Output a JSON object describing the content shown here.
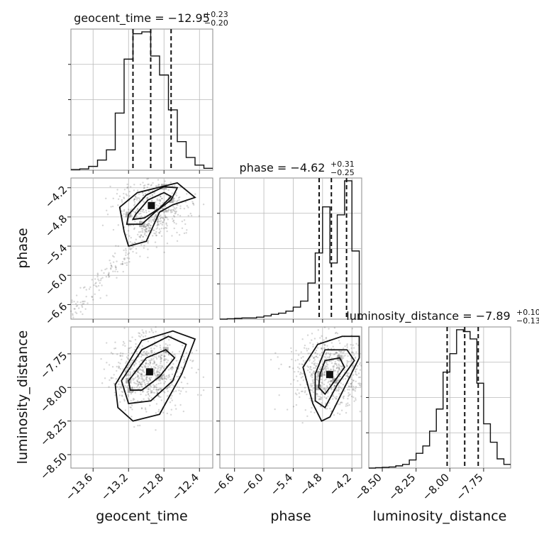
{
  "chart_data": [
    {
      "type": "histogram",
      "panel": "geocent_time_1d",
      "title": {
        "main": "geocent_time = −12.95",
        "sup": "+0.23",
        "sub": "−0.20"
      },
      "xlim": [
        -13.85,
        -12.25
      ],
      "bin_edges": [
        -13.85,
        -13.75,
        -13.65,
        -13.55,
        -13.45,
        -13.35,
        -13.25,
        -13.15,
        -13.05,
        -12.95,
        -12.85,
        -12.75,
        -12.65,
        -12.55,
        -12.45,
        -12.35,
        -12.25
      ],
      "counts": [
        1,
        2,
        6,
        16,
        32,
        90,
        175,
        215,
        218,
        180,
        150,
        95,
        45,
        20,
        8,
        3
      ],
      "quantiles": [
        -13.15,
        -12.95,
        -12.72
      ]
    },
    {
      "type": "scatter",
      "panel": "geocent_time_vs_phase",
      "xlim": [
        -13.85,
        -12.25
      ],
      "ylim": [
        -6.9,
        -4.0
      ],
      "contours": [
        [
          [
            -13.2,
            -4.75
          ],
          [
            -13.0,
            -4.35
          ],
          [
            -12.8,
            -4.18
          ],
          [
            -12.65,
            -4.2
          ],
          [
            -12.72,
            -4.45
          ],
          [
            -12.9,
            -4.7
          ],
          [
            -13.05,
            -4.95
          ],
          [
            -13.22,
            -4.95
          ]
        ],
        [
          [
            -13.12,
            -4.75
          ],
          [
            -12.98,
            -4.45
          ],
          [
            -12.8,
            -4.3
          ],
          [
            -12.72,
            -4.38
          ],
          [
            -12.85,
            -4.62
          ],
          [
            -13.02,
            -4.82
          ],
          [
            -13.15,
            -4.85
          ]
        ],
        [
          [
            -13.3,
            -4.6
          ],
          [
            -13.1,
            -4.3
          ],
          [
            -12.65,
            -4.1
          ],
          [
            -12.45,
            -4.4
          ],
          [
            -12.7,
            -4.55
          ],
          [
            -12.85,
            -4.7
          ],
          [
            -13.0,
            -5.3
          ],
          [
            -13.2,
            -5.4
          ],
          [
            -13.25,
            -5.1
          ]
        ]
      ]
    },
    {
      "type": "histogram",
      "panel": "phase_1d",
      "title": {
        "main": "phase = −4.62",
        "sup": "+0.31",
        "sub": "−0.25"
      },
      "xlim": [
        -6.9,
        -4.0
      ],
      "bin_edges": [
        -6.9,
        -6.75,
        -6.6,
        -6.45,
        -6.3,
        -6.15,
        -6.0,
        -5.85,
        -5.7,
        -5.55,
        -5.4,
        -5.25,
        -5.1,
        -4.95,
        -4.8,
        -4.65,
        -4.5,
        -4.35,
        -4.2,
        -4.05,
        -4.0
      ],
      "counts": [
        0,
        1,
        2,
        3,
        3,
        5,
        8,
        12,
        15,
        20,
        30,
        45,
        90,
        165,
        280,
        140,
        260,
        345,
        170,
        0
      ],
      "quantiles": [
        -4.87,
        -4.62,
        -4.31
      ]
    },
    {
      "type": "scatter",
      "panel": "geocent_time_vs_luminosity_distance",
      "xlim": [
        -13.85,
        -12.25
      ],
      "ylim": [
        -8.6,
        -7.55
      ],
      "contours": [
        [
          [
            -13.2,
            -7.95
          ],
          [
            -13.0,
            -7.78
          ],
          [
            -12.78,
            -7.72
          ],
          [
            -12.68,
            -7.78
          ],
          [
            -12.85,
            -7.92
          ],
          [
            -13.05,
            -8.02
          ],
          [
            -13.18,
            -8.02
          ]
        ],
        [
          [
            -13.28,
            -7.95
          ],
          [
            -13.05,
            -7.72
          ],
          [
            -12.75,
            -7.62
          ],
          [
            -12.55,
            -7.68
          ],
          [
            -12.7,
            -7.95
          ],
          [
            -12.95,
            -8.1
          ],
          [
            -13.2,
            -8.12
          ]
        ],
        [
          [
            -13.35,
            -7.98
          ],
          [
            -13.05,
            -7.65
          ],
          [
            -12.7,
            -7.58
          ],
          [
            -12.45,
            -7.64
          ],
          [
            -12.6,
            -7.9
          ],
          [
            -12.85,
            -8.2
          ],
          [
            -13.15,
            -8.25
          ],
          [
            -13.32,
            -8.15
          ]
        ]
      ]
    },
    {
      "type": "scatter",
      "panel": "phase_vs_luminosity_distance",
      "xlim": [
        -6.9,
        -4.0
      ],
      "ylim": [
        -8.6,
        -7.55
      ],
      "contours": [
        [
          [
            -4.85,
            -7.9
          ],
          [
            -4.75,
            -7.8
          ],
          [
            -4.45,
            -7.78
          ],
          [
            -4.35,
            -7.85
          ],
          [
            -4.55,
            -7.95
          ],
          [
            -4.75,
            -8.05
          ],
          [
            -4.88,
            -8.0
          ]
        ],
        [
          [
            -4.95,
            -7.9
          ],
          [
            -4.75,
            -7.72
          ],
          [
            -4.3,
            -7.72
          ],
          [
            -4.15,
            -7.8
          ],
          [
            -4.5,
            -7.98
          ],
          [
            -4.75,
            -8.15
          ],
          [
            -4.95,
            -8.1
          ]
        ],
        [
          [
            -5.2,
            -7.85
          ],
          [
            -4.9,
            -7.68
          ],
          [
            -4.4,
            -7.62
          ],
          [
            -4.05,
            -7.62
          ],
          [
            -4.05,
            -7.78
          ],
          [
            -4.35,
            -8.0
          ],
          [
            -4.65,
            -8.22
          ],
          [
            -4.82,
            -8.25
          ],
          [
            -5.0,
            -8.12
          ]
        ]
      ]
    },
    {
      "type": "histogram",
      "panel": "luminosity_distance_1d",
      "title": {
        "main": "luminosity_distance = −7.89",
        "sup": "+0.10",
        "sub": "−0.13"
      },
      "xlim": [
        -8.6,
        -7.55
      ],
      "bin_edges": [
        -8.6,
        -8.55,
        -8.5,
        -8.45,
        -8.4,
        -8.35,
        -8.3,
        -8.25,
        -8.2,
        -8.15,
        -8.1,
        -8.05,
        -8.0,
        -7.95,
        -7.9,
        -7.85,
        -7.8,
        -7.75,
        -7.7,
        -7.65,
        -7.6,
        -7.55
      ],
      "counts": [
        0,
        1,
        2,
        3,
        6,
        10,
        22,
        40,
        60,
        100,
        160,
        260,
        310,
        375,
        370,
        350,
        230,
        120,
        70,
        25,
        10
      ],
      "quantiles": [
        -8.02,
        -7.89,
        -7.79
      ]
    }
  ],
  "axes": {
    "geocent_time": {
      "label": "geocent_time",
      "ticks": [
        "−13.6",
        "−13.2",
        "−12.8",
        "−12.4"
      ],
      "tick_values": [
        -13.6,
        -13.2,
        -12.8,
        -12.4
      ]
    },
    "phase": {
      "label": "phase",
      "ticks": [
        "−6.6",
        "−6.0",
        "−5.4",
        "−4.8",
        "−4.2"
      ],
      "tick_values": [
        -6.6,
        -6.0,
        -5.4,
        -4.8,
        -4.2
      ]
    },
    "luminosity_distance": {
      "label": "luminosity_distance",
      "ticks": [
        "−8.50",
        "−8.25",
        "−8.00",
        "−7.75"
      ],
      "tick_values": [
        -8.5,
        -8.25,
        -8.0,
        -7.75
      ]
    }
  },
  "colors": {
    "hist": "#111111",
    "points": "#444444",
    "contour": "#111111",
    "grid": "#b8b8b8"
  }
}
